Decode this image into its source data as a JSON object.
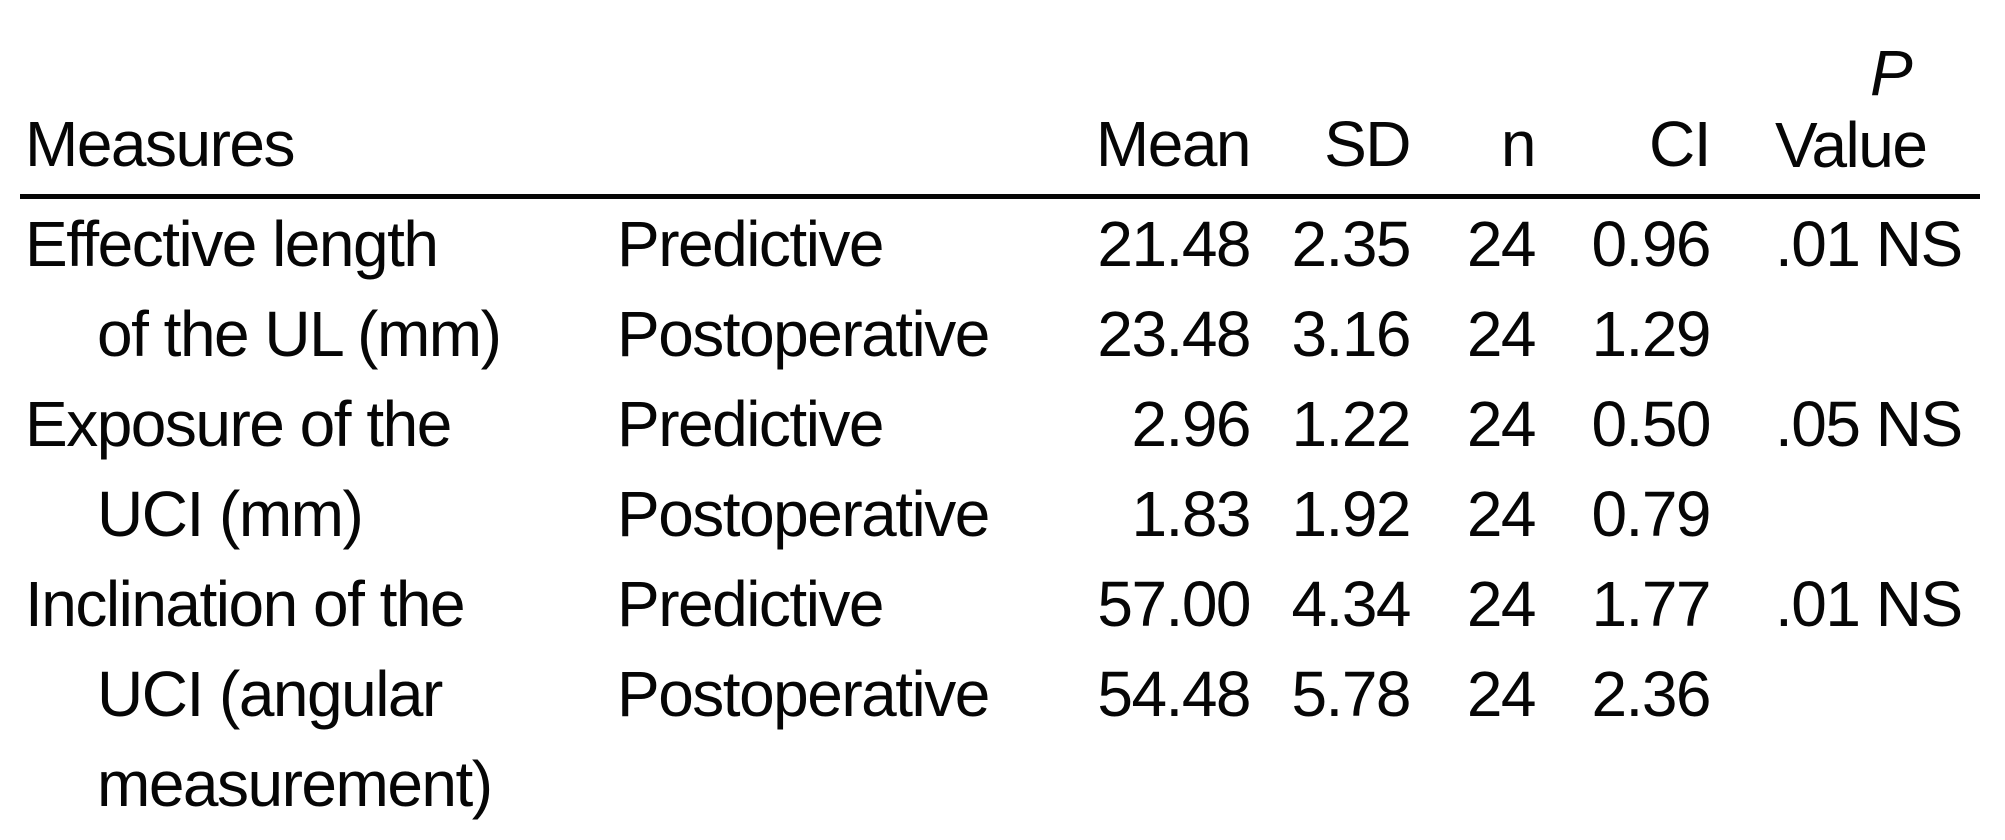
{
  "table": {
    "headers": {
      "measures": "Measures",
      "mean": "Mean",
      "sd": "SD",
      "n": "n",
      "ci": "CI",
      "p_line1": "P",
      "p_line2": "Value"
    },
    "rows": [
      {
        "measure_lines": [
          "Effective length",
          "of the UL (mm)"
        ],
        "sub_rows": [
          {
            "phase": "Predictive",
            "mean": "21.48",
            "sd": "2.35",
            "n": "24",
            "ci": "0.96",
            "p_value": ".01 NS"
          },
          {
            "phase": "Postoperative",
            "mean": "23.48",
            "sd": "3.16",
            "n": "24",
            "ci": "1.29",
            "p_value": ""
          }
        ]
      },
      {
        "measure_lines": [
          "Exposure of the",
          "UCI (mm)"
        ],
        "sub_rows": [
          {
            "phase": "Predictive",
            "mean": "2.96",
            "sd": "1.22",
            "n": "24",
            "ci": "0.50",
            "p_value": ".05 NS"
          },
          {
            "phase": "Postoperative",
            "mean": "1.83",
            "sd": "1.92",
            "n": "24",
            "ci": "0.79",
            "p_value": ""
          }
        ]
      },
      {
        "measure_lines": [
          "Inclination of the",
          "UCI (angular",
          "measurement)"
        ],
        "sub_rows": [
          {
            "phase": "Predictive",
            "mean": "57.00",
            "sd": "4.34",
            "n": "24",
            "ci": "1.77",
            "p_value": ".01 NS"
          },
          {
            "phase": "Postoperative",
            "mean": "54.48",
            "sd": "5.78",
            "n": "24",
            "ci": "2.36",
            "p_value": ""
          }
        ]
      }
    ],
    "text_color": "#060606",
    "background_color": "#ffffff"
  }
}
